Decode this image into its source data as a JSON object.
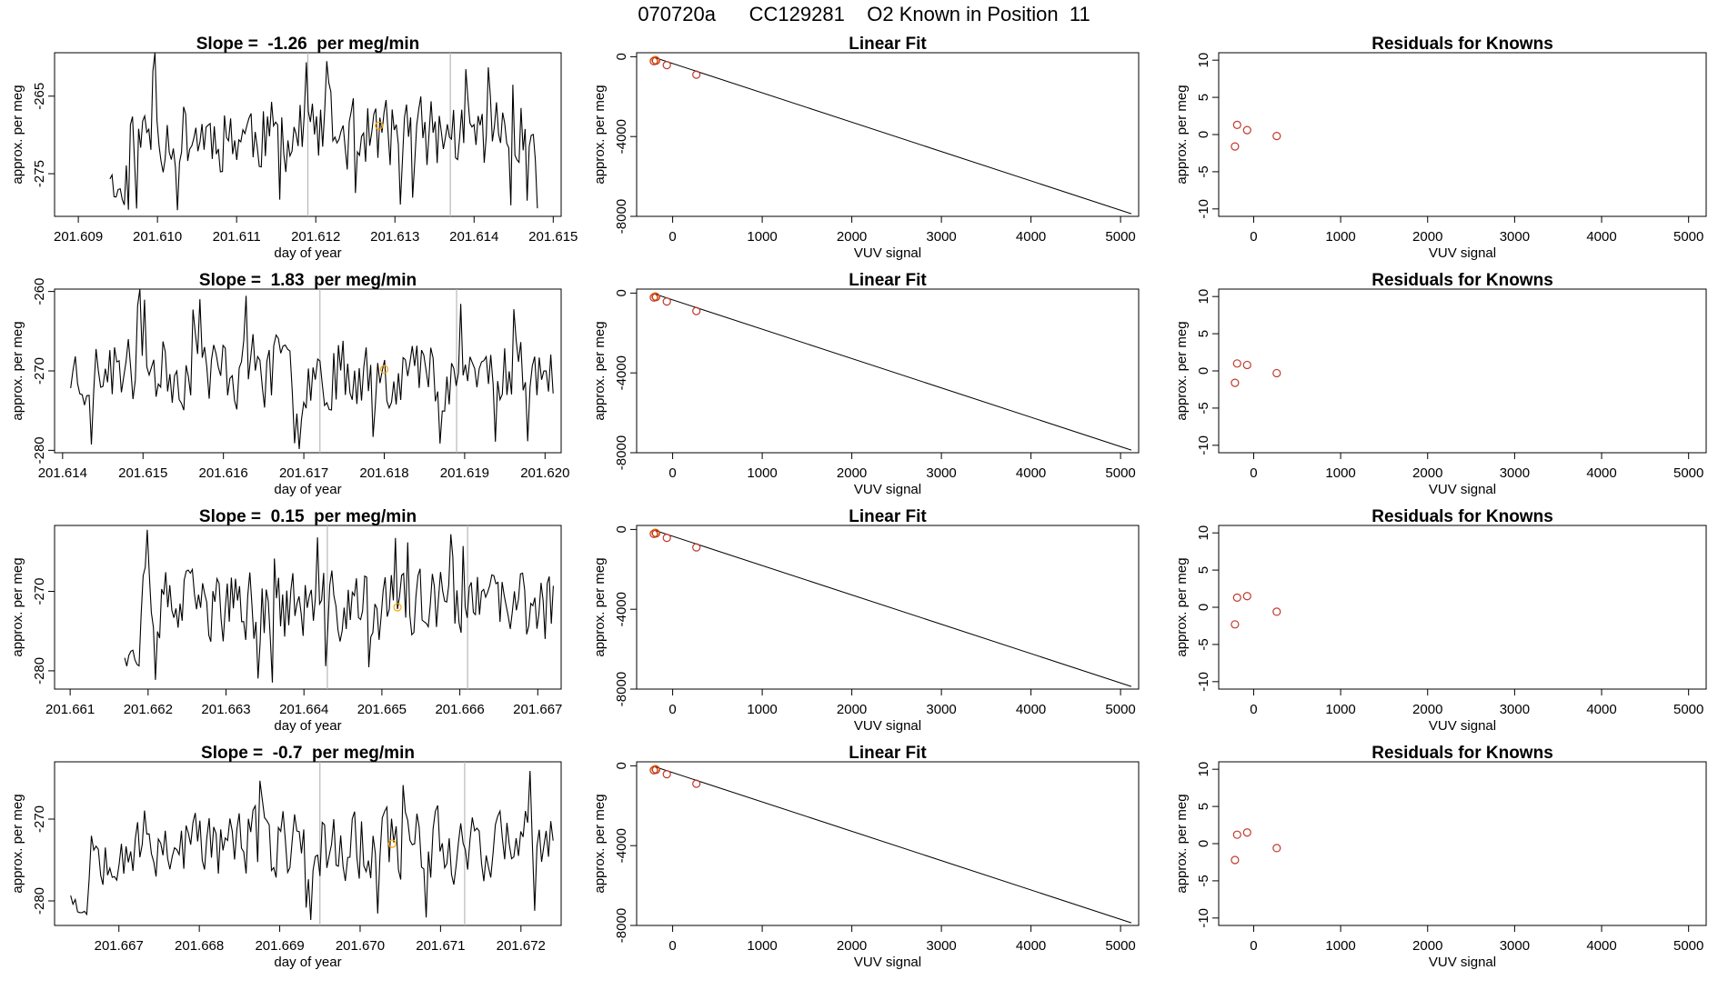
{
  "page": {
    "title": "070720a      CC129281    O2 Known in Position  11"
  },
  "chart_data": [
    {
      "type": "line",
      "panel": "time-series",
      "row": 0,
      "title": "Slope =  -1.26  per meg/min",
      "xlabel": "day of year",
      "ylabel": "approx. per meg",
      "xlim": [
        201.6087,
        201.6151
      ],
      "ylim": [
        -280.5,
        -259.4
      ],
      "xticks": [
        201.609,
        201.61,
        201.611,
        201.612,
        201.613,
        201.614,
        201.615
      ],
      "yticks": [
        -265,
        -275
      ],
      "vlines": [
        201.6119,
        201.6137
      ],
      "series_start": 201.6094,
      "series_end": 201.6148,
      "highlight": {
        "x": 201.6128,
        "y": -268.8
      },
      "seed": 11
    },
    {
      "type": "line",
      "panel": "linear-fit",
      "row": 0,
      "title": "Linear Fit",
      "xlabel": "VUV signal",
      "ylabel": "approx. per meg",
      "xlim": [
        -402,
        5202
      ],
      "ylim": [
        -8000,
        200
      ],
      "xticks": [
        0,
        1000,
        2000,
        3000,
        4000,
        5000
      ],
      "yticks": [
        0,
        -4000,
        -8000
      ],
      "fit_line": {
        "x": [
          -200,
          5120
        ],
        "y": [
          -45,
          -7870
        ]
      },
      "points": [
        {
          "x": -210,
          "y": -220
        },
        {
          "x": -185,
          "y": -200
        },
        {
          "x": -65,
          "y": -420
        },
        {
          "x": 265,
          "y": -900
        }
      ],
      "highlight_point": {
        "x": -195,
        "y": -160
      }
    },
    {
      "type": "scatter",
      "panel": "residuals",
      "row": 0,
      "title": "Residuals for Knowns",
      "xlabel": "VUV signal",
      "ylabel": "approx. per meg",
      "xlim": [
        -402,
        5202
      ],
      "ylim": [
        -11,
        11
      ],
      "xticks": [
        0,
        1000,
        2000,
        3000,
        4000,
        5000
      ],
      "yticks": [
        10,
        5,
        0,
        -5,
        -10
      ],
      "points": [
        {
          "x": -215,
          "y": -1.6
        },
        {
          "x": -190,
          "y": 1.3
        },
        {
          "x": -75,
          "y": 0.6
        },
        {
          "x": 265,
          "y": -0.2
        }
      ]
    },
    {
      "type": "line",
      "panel": "time-series",
      "row": 1,
      "title": "Slope =  1.83  per meg/min",
      "xlabel": "day of year",
      "ylabel": "approx. per meg",
      "xlim": [
        201.6139,
        201.6202
      ],
      "ylim": [
        -280.3,
        -259.7
      ],
      "xticks": [
        201.614,
        201.615,
        201.616,
        201.617,
        201.618,
        201.619,
        201.62
      ],
      "yticks": [
        -260,
        -270,
        -280
      ],
      "vlines": [
        201.6172,
        201.6189
      ],
      "series_start": 201.6141,
      "series_end": 201.6201,
      "highlight": {
        "x": 201.618,
        "y": -269.8
      },
      "seed": 23
    },
    {
      "type": "line",
      "panel": "linear-fit",
      "row": 1,
      "title": "Linear Fit",
      "xlabel": "VUV signal",
      "ylabel": "approx. per meg",
      "xlim": [
        -402,
        5202
      ],
      "ylim": [
        -8000,
        200
      ],
      "xticks": [
        0,
        1000,
        2000,
        3000,
        4000,
        5000
      ],
      "yticks": [
        0,
        -4000,
        -8000
      ],
      "fit_line": {
        "x": [
          -200,
          5120
        ],
        "y": [
          -45,
          -7870
        ]
      },
      "points": [
        {
          "x": -210,
          "y": -220
        },
        {
          "x": -185,
          "y": -200
        },
        {
          "x": -65,
          "y": -420
        },
        {
          "x": 265,
          "y": -900
        }
      ],
      "highlight_point": {
        "x": -195,
        "y": -160
      }
    },
    {
      "type": "scatter",
      "panel": "residuals",
      "row": 1,
      "title": "Residuals for Knowns",
      "xlabel": "VUV signal",
      "ylabel": "approx. per meg",
      "xlim": [
        -402,
        5202
      ],
      "ylim": [
        -11,
        11
      ],
      "xticks": [
        0,
        1000,
        2000,
        3000,
        4000,
        5000
      ],
      "yticks": [
        10,
        5,
        0,
        -5,
        -10
      ],
      "points": [
        {
          "x": -215,
          "y": -1.6
        },
        {
          "x": -190,
          "y": 1.0
        },
        {
          "x": -75,
          "y": 0.8
        },
        {
          "x": 265,
          "y": -0.3
        }
      ]
    },
    {
      "type": "line",
      "panel": "time-series",
      "row": 2,
      "title": "Slope =  0.15  per meg/min",
      "xlabel": "day of year",
      "ylabel": "approx. per meg",
      "xlim": [
        201.6608,
        201.6673
      ],
      "ylim": [
        -282.3,
        -261.7
      ],
      "xticks": [
        201.661,
        201.662,
        201.663,
        201.664,
        201.665,
        201.666,
        201.667
      ],
      "yticks": [
        -270,
        -280
      ],
      "vlines": [
        201.6643,
        201.6661
      ],
      "series_start": 201.6617,
      "series_end": 201.6672,
      "highlight": {
        "x": 201.6652,
        "y": -272.0
      },
      "seed": 37
    },
    {
      "type": "line",
      "panel": "linear-fit",
      "row": 2,
      "title": "Linear Fit",
      "xlabel": "VUV signal",
      "ylabel": "approx. per meg",
      "xlim": [
        -402,
        5202
      ],
      "ylim": [
        -8000,
        200
      ],
      "xticks": [
        0,
        1000,
        2000,
        3000,
        4000,
        5000
      ],
      "yticks": [
        0,
        -4000,
        -8000
      ],
      "fit_line": {
        "x": [
          -200,
          5120
        ],
        "y": [
          -45,
          -7870
        ]
      },
      "points": [
        {
          "x": -210,
          "y": -220
        },
        {
          "x": -185,
          "y": -200
        },
        {
          "x": -65,
          "y": -420
        },
        {
          "x": 265,
          "y": -900
        }
      ],
      "highlight_point": {
        "x": -195,
        "y": -160
      }
    },
    {
      "type": "scatter",
      "panel": "residuals",
      "row": 2,
      "title": "Residuals for Knowns",
      "xlabel": "VUV signal",
      "ylabel": "approx. per meg",
      "xlim": [
        -402,
        5202
      ],
      "ylim": [
        -11,
        11
      ],
      "xticks": [
        0,
        1000,
        2000,
        3000,
        4000,
        5000
      ],
      "yticks": [
        10,
        5,
        0,
        -5,
        -10
      ],
      "points": [
        {
          "x": -215,
          "y": -2.3
        },
        {
          "x": -190,
          "y": 1.3
        },
        {
          "x": -75,
          "y": 1.5
        },
        {
          "x": 265,
          "y": -0.6
        }
      ]
    },
    {
      "type": "line",
      "panel": "time-series",
      "row": 3,
      "title": "Slope =  -0.7  per meg/min",
      "xlabel": "day of year",
      "ylabel": "approx. per meg",
      "xlim": [
        201.6662,
        201.6725
      ],
      "ylim": [
        -283.0,
        -263.0
      ],
      "xticks": [
        201.667,
        201.668,
        201.669,
        201.67,
        201.671,
        201.672
      ],
      "yticks": [
        -270,
        -280
      ],
      "vlines": [
        201.6695,
        201.6713
      ],
      "series_start": 201.6664,
      "series_end": 201.6724,
      "highlight": {
        "x": 201.6704,
        "y": -273.0
      },
      "seed": 53
    },
    {
      "type": "line",
      "panel": "linear-fit",
      "row": 3,
      "title": "Linear Fit",
      "xlabel": "VUV signal",
      "ylabel": "approx. per meg",
      "xlim": [
        -402,
        5202
      ],
      "ylim": [
        -8000,
        200
      ],
      "xticks": [
        0,
        1000,
        2000,
        3000,
        4000,
        5000
      ],
      "yticks": [
        0,
        -4000,
        -8000
      ],
      "fit_line": {
        "x": [
          -200,
          5120
        ],
        "y": [
          -45,
          -7870
        ]
      },
      "points": [
        {
          "x": -210,
          "y": -220
        },
        {
          "x": -185,
          "y": -200
        },
        {
          "x": -65,
          "y": -420
        },
        {
          "x": 265,
          "y": -900
        }
      ],
      "highlight_point": {
        "x": -195,
        "y": -160
      }
    },
    {
      "type": "scatter",
      "panel": "residuals",
      "row": 3,
      "title": "Residuals for Knowns",
      "xlabel": "VUV signal",
      "ylabel": "approx. per meg",
      "xlim": [
        -402,
        5202
      ],
      "ylim": [
        -11,
        11
      ],
      "xticks": [
        0,
        1000,
        2000,
        3000,
        4000,
        5000
      ],
      "yticks": [
        10,
        5,
        0,
        -5,
        -10
      ],
      "points": [
        {
          "x": -215,
          "y": -2.2
        },
        {
          "x": -190,
          "y": 1.2
        },
        {
          "x": -75,
          "y": 1.5
        },
        {
          "x": 265,
          "y": -0.6
        }
      ]
    }
  ],
  "colors": {
    "line": "#000000",
    "highlight": "#ffa500",
    "points": "#c0392b",
    "vlines": "#b8b8b8",
    "frame": "#000000"
  }
}
